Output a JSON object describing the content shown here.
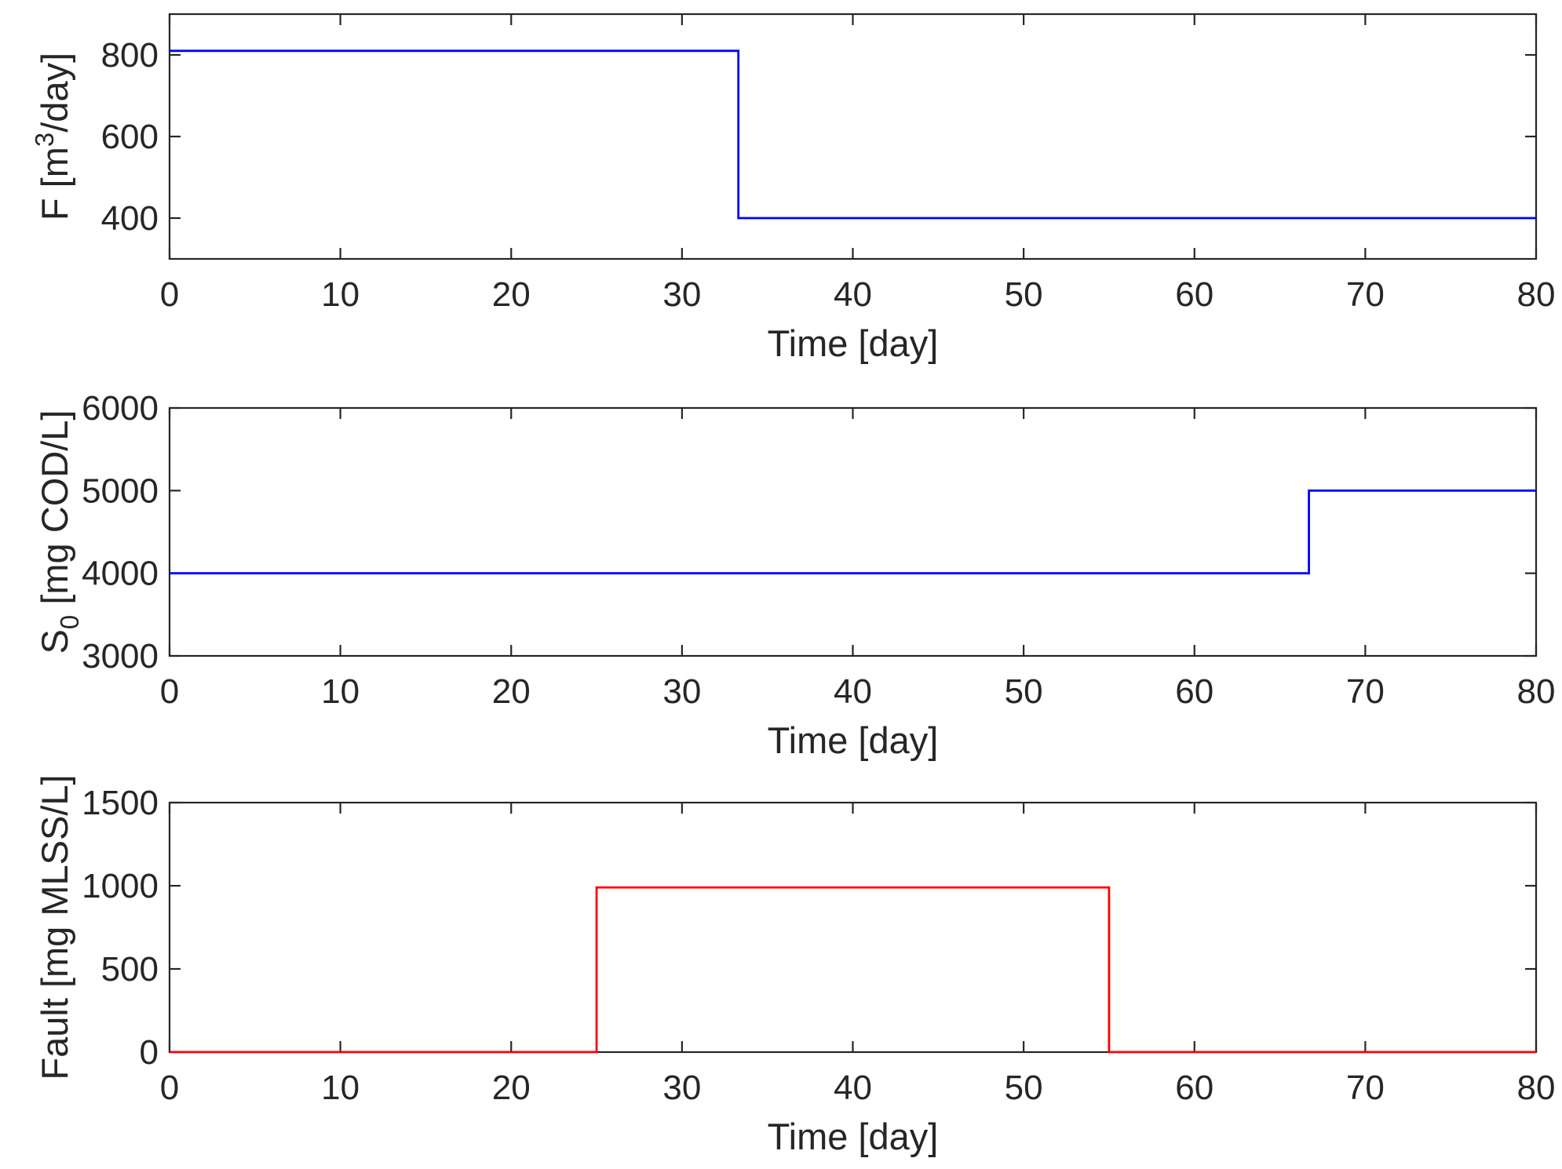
{
  "chart_data": [
    {
      "type": "line",
      "step": true,
      "xlabel": "Time [day]",
      "ylabel": {
        "base": "F [m",
        "sup": "3",
        "tail": "/day]"
      },
      "xlim": [
        0,
        80
      ],
      "ylim": [
        300,
        900
      ],
      "xticks": [
        0,
        10,
        20,
        30,
        40,
        50,
        60,
        70,
        80
      ],
      "yticks": [
        400,
        600,
        800
      ],
      "grid": false,
      "color": "#0000FF",
      "series": [
        {
          "x": [
            0,
            33.3,
            33.3,
            80
          ],
          "y": [
            810,
            810,
            400,
            400
          ]
        }
      ]
    },
    {
      "type": "line",
      "step": true,
      "xlabel": "Time [day]",
      "ylabel": {
        "base": "S",
        "sub": "0",
        "tail": " [mg COD/L]"
      },
      "xlim": [
        0,
        80
      ],
      "ylim": [
        3000,
        6000
      ],
      "xticks": [
        0,
        10,
        20,
        30,
        40,
        50,
        60,
        70,
        80
      ],
      "yticks": [
        3000,
        4000,
        5000,
        6000
      ],
      "grid": false,
      "color": "#0000FF",
      "series": [
        {
          "x": [
            0,
            66.7,
            66.7,
            80
          ],
          "y": [
            4000,
            4000,
            5000,
            5000
          ]
        }
      ]
    },
    {
      "type": "line",
      "step": true,
      "xlabel": "Time [day]",
      "ylabel": {
        "base": "Fault [mg MLSS/L]"
      },
      "xlim": [
        0,
        80
      ],
      "ylim": [
        0,
        1500
      ],
      "xticks": [
        0,
        10,
        20,
        30,
        40,
        50,
        60,
        70,
        80
      ],
      "yticks": [
        0,
        500,
        1000,
        1500
      ],
      "grid": false,
      "color": "#FF0000",
      "series": [
        {
          "x": [
            0,
            25,
            25,
            55,
            55,
            80
          ],
          "y": [
            0,
            0,
            990,
            990,
            0,
            0
          ]
        }
      ]
    }
  ]
}
